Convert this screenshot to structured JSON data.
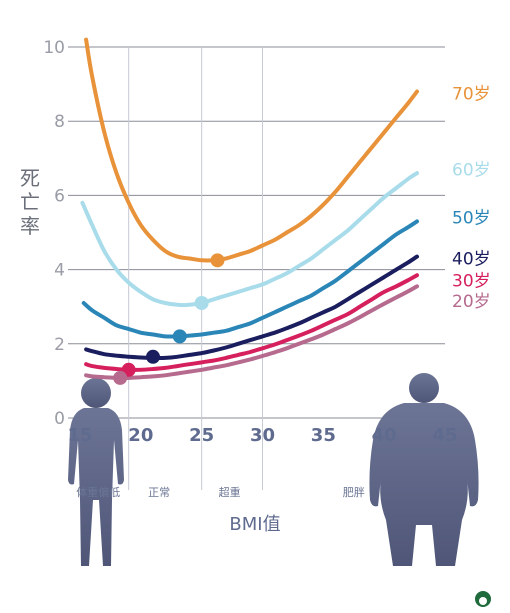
{
  "chart_data": {
    "type": "line",
    "ylabel": "死亡率",
    "xlabel": "BMI值",
    "xlim": [
      15,
      45
    ],
    "ylim": [
      0,
      10
    ],
    "yticks": [
      "0",
      "2",
      "4",
      "6",
      "8",
      "10"
    ],
    "xticks": [
      "15",
      "20",
      "25",
      "30",
      "35",
      "40",
      "45"
    ],
    "categories": [
      {
        "label": "体重偏低",
        "x": 16.5
      },
      {
        "label": "正常",
        "x": 21.5
      },
      {
        "label": "超重",
        "x": 27.3
      },
      {
        "label": "肥胖",
        "x": 37.5
      }
    ],
    "series": [
      {
        "name": "70岁",
        "color": "#e8923a",
        "points": [
          [
            15.5,
            10.2
          ],
          [
            16,
            9.2
          ],
          [
            17,
            7.7
          ],
          [
            18,
            6.6
          ],
          [
            19,
            5.8
          ],
          [
            20,
            5.2
          ],
          [
            21,
            4.8
          ],
          [
            22,
            4.5
          ],
          [
            23,
            4.35
          ],
          [
            24,
            4.3
          ],
          [
            25,
            4.25
          ],
          [
            26,
            4.25
          ],
          [
            27,
            4.3
          ],
          [
            28,
            4.4
          ],
          [
            29,
            4.5
          ],
          [
            30,
            4.65
          ],
          [
            31,
            4.8
          ],
          [
            32,
            5.0
          ],
          [
            33,
            5.2
          ],
          [
            34,
            5.45
          ],
          [
            35,
            5.75
          ],
          [
            36,
            6.1
          ],
          [
            37,
            6.5
          ],
          [
            38,
            6.9
          ],
          [
            39,
            7.3
          ],
          [
            40,
            7.7
          ],
          [
            41,
            8.1
          ],
          [
            42,
            8.5
          ],
          [
            42.7,
            8.8
          ]
        ],
        "marker": [
          26.3,
          4.25
        ]
      },
      {
        "name": "60岁",
        "color": "#a9dcea",
        "points": [
          [
            15.2,
            5.8
          ],
          [
            16,
            5.2
          ],
          [
            17,
            4.5
          ],
          [
            18,
            4.0
          ],
          [
            19,
            3.65
          ],
          [
            20,
            3.4
          ],
          [
            21,
            3.2
          ],
          [
            22,
            3.1
          ],
          [
            23,
            3.05
          ],
          [
            24,
            3.05
          ],
          [
            25,
            3.1
          ],
          [
            26,
            3.2
          ],
          [
            27,
            3.3
          ],
          [
            28,
            3.4
          ],
          [
            29,
            3.5
          ],
          [
            30,
            3.6
          ],
          [
            31,
            3.75
          ],
          [
            32,
            3.9
          ],
          [
            33,
            4.1
          ],
          [
            34,
            4.3
          ],
          [
            35,
            4.55
          ],
          [
            36,
            4.8
          ],
          [
            37,
            5.05
          ],
          [
            38,
            5.35
          ],
          [
            39,
            5.65
          ],
          [
            40,
            5.95
          ],
          [
            41,
            6.2
          ],
          [
            42,
            6.45
          ],
          [
            42.7,
            6.6
          ]
        ],
        "marker": [
          25.0,
          3.1
        ]
      },
      {
        "name": "50岁",
        "color": "#2b86b8",
        "points": [
          [
            15.3,
            3.1
          ],
          [
            16,
            2.9
          ],
          [
            17,
            2.7
          ],
          [
            18,
            2.5
          ],
          [
            19,
            2.4
          ],
          [
            20,
            2.3
          ],
          [
            21,
            2.25
          ],
          [
            22,
            2.2
          ],
          [
            23,
            2.2
          ],
          [
            24,
            2.22
          ],
          [
            25,
            2.25
          ],
          [
            26,
            2.3
          ],
          [
            27,
            2.35
          ],
          [
            28,
            2.45
          ],
          [
            29,
            2.55
          ],
          [
            30,
            2.7
          ],
          [
            31,
            2.85
          ],
          [
            32,
            3.0
          ],
          [
            33,
            3.15
          ],
          [
            34,
            3.3
          ],
          [
            35,
            3.5
          ],
          [
            36,
            3.7
          ],
          [
            37,
            3.95
          ],
          [
            38,
            4.2
          ],
          [
            39,
            4.45
          ],
          [
            40,
            4.7
          ],
          [
            41,
            4.95
          ],
          [
            42,
            5.15
          ],
          [
            42.7,
            5.3
          ]
        ],
        "marker": [
          23.2,
          2.2
        ]
      },
      {
        "name": "40岁",
        "color": "#1a1d5e",
        "points": [
          [
            15.5,
            1.85
          ],
          [
            16,
            1.8
          ],
          [
            17,
            1.72
          ],
          [
            18,
            1.68
          ],
          [
            19,
            1.65
          ],
          [
            20,
            1.63
          ],
          [
            21,
            1.62
          ],
          [
            22,
            1.62
          ],
          [
            23,
            1.65
          ],
          [
            24,
            1.7
          ],
          [
            25,
            1.75
          ],
          [
            26,
            1.82
          ],
          [
            27,
            1.9
          ],
          [
            28,
            2.0
          ],
          [
            29,
            2.1
          ],
          [
            30,
            2.2
          ],
          [
            31,
            2.3
          ],
          [
            32,
            2.42
          ],
          [
            33,
            2.55
          ],
          [
            34,
            2.7
          ],
          [
            35,
            2.85
          ],
          [
            36,
            3.0
          ],
          [
            37,
            3.2
          ],
          [
            38,
            3.4
          ],
          [
            39,
            3.6
          ],
          [
            40,
            3.8
          ],
          [
            41,
            4.0
          ],
          [
            42,
            4.2
          ],
          [
            42.7,
            4.35
          ]
        ],
        "marker": [
          21.0,
          1.65
        ]
      },
      {
        "name": "30岁",
        "color": "#d6205e",
        "points": [
          [
            15.5,
            1.45
          ],
          [
            16,
            1.4
          ],
          [
            17,
            1.35
          ],
          [
            18,
            1.32
          ],
          [
            19,
            1.3
          ],
          [
            20,
            1.3
          ],
          [
            21,
            1.32
          ],
          [
            22,
            1.35
          ],
          [
            23,
            1.4
          ],
          [
            24,
            1.45
          ],
          [
            25,
            1.5
          ],
          [
            26,
            1.55
          ],
          [
            27,
            1.62
          ],
          [
            28,
            1.7
          ],
          [
            29,
            1.78
          ],
          [
            30,
            1.88
          ],
          [
            31,
            1.98
          ],
          [
            32,
            2.1
          ],
          [
            33,
            2.22
          ],
          [
            34,
            2.35
          ],
          [
            35,
            2.5
          ],
          [
            36,
            2.65
          ],
          [
            37,
            2.8
          ],
          [
            38,
            3.0
          ],
          [
            39,
            3.2
          ],
          [
            40,
            3.4
          ],
          [
            41,
            3.55
          ],
          [
            42,
            3.72
          ],
          [
            42.7,
            3.85
          ]
        ],
        "marker": [
          19.0,
          1.3
        ]
      },
      {
        "name": "20岁",
        "color": "#b56a8e",
        "points": [
          [
            15.5,
            1.15
          ],
          [
            16,
            1.12
          ],
          [
            17,
            1.1
          ],
          [
            18,
            1.08
          ],
          [
            19,
            1.08
          ],
          [
            20,
            1.1
          ],
          [
            21,
            1.12
          ],
          [
            22,
            1.15
          ],
          [
            23,
            1.2
          ],
          [
            24,
            1.25
          ],
          [
            25,
            1.3
          ],
          [
            26,
            1.36
          ],
          [
            27,
            1.42
          ],
          [
            28,
            1.5
          ],
          [
            29,
            1.58
          ],
          [
            30,
            1.67
          ],
          [
            31,
            1.77
          ],
          [
            32,
            1.88
          ],
          [
            33,
            2.0
          ],
          [
            34,
            2.12
          ],
          [
            35,
            2.25
          ],
          [
            36,
            2.4
          ],
          [
            37,
            2.55
          ],
          [
            38,
            2.72
          ],
          [
            39,
            2.9
          ],
          [
            40,
            3.08
          ],
          [
            41,
            3.25
          ],
          [
            42,
            3.42
          ],
          [
            42.7,
            3.55
          ]
        ],
        "marker": [
          18.3,
          1.08
        ]
      }
    ],
    "label_positions": {
      "70岁": 8.75,
      "60岁": 6.7,
      "50岁": 5.4,
      "40岁": 4.3,
      "30岁": 3.7,
      "20岁": 3.15
    },
    "grid": true,
    "legend": "inline-right"
  }
}
